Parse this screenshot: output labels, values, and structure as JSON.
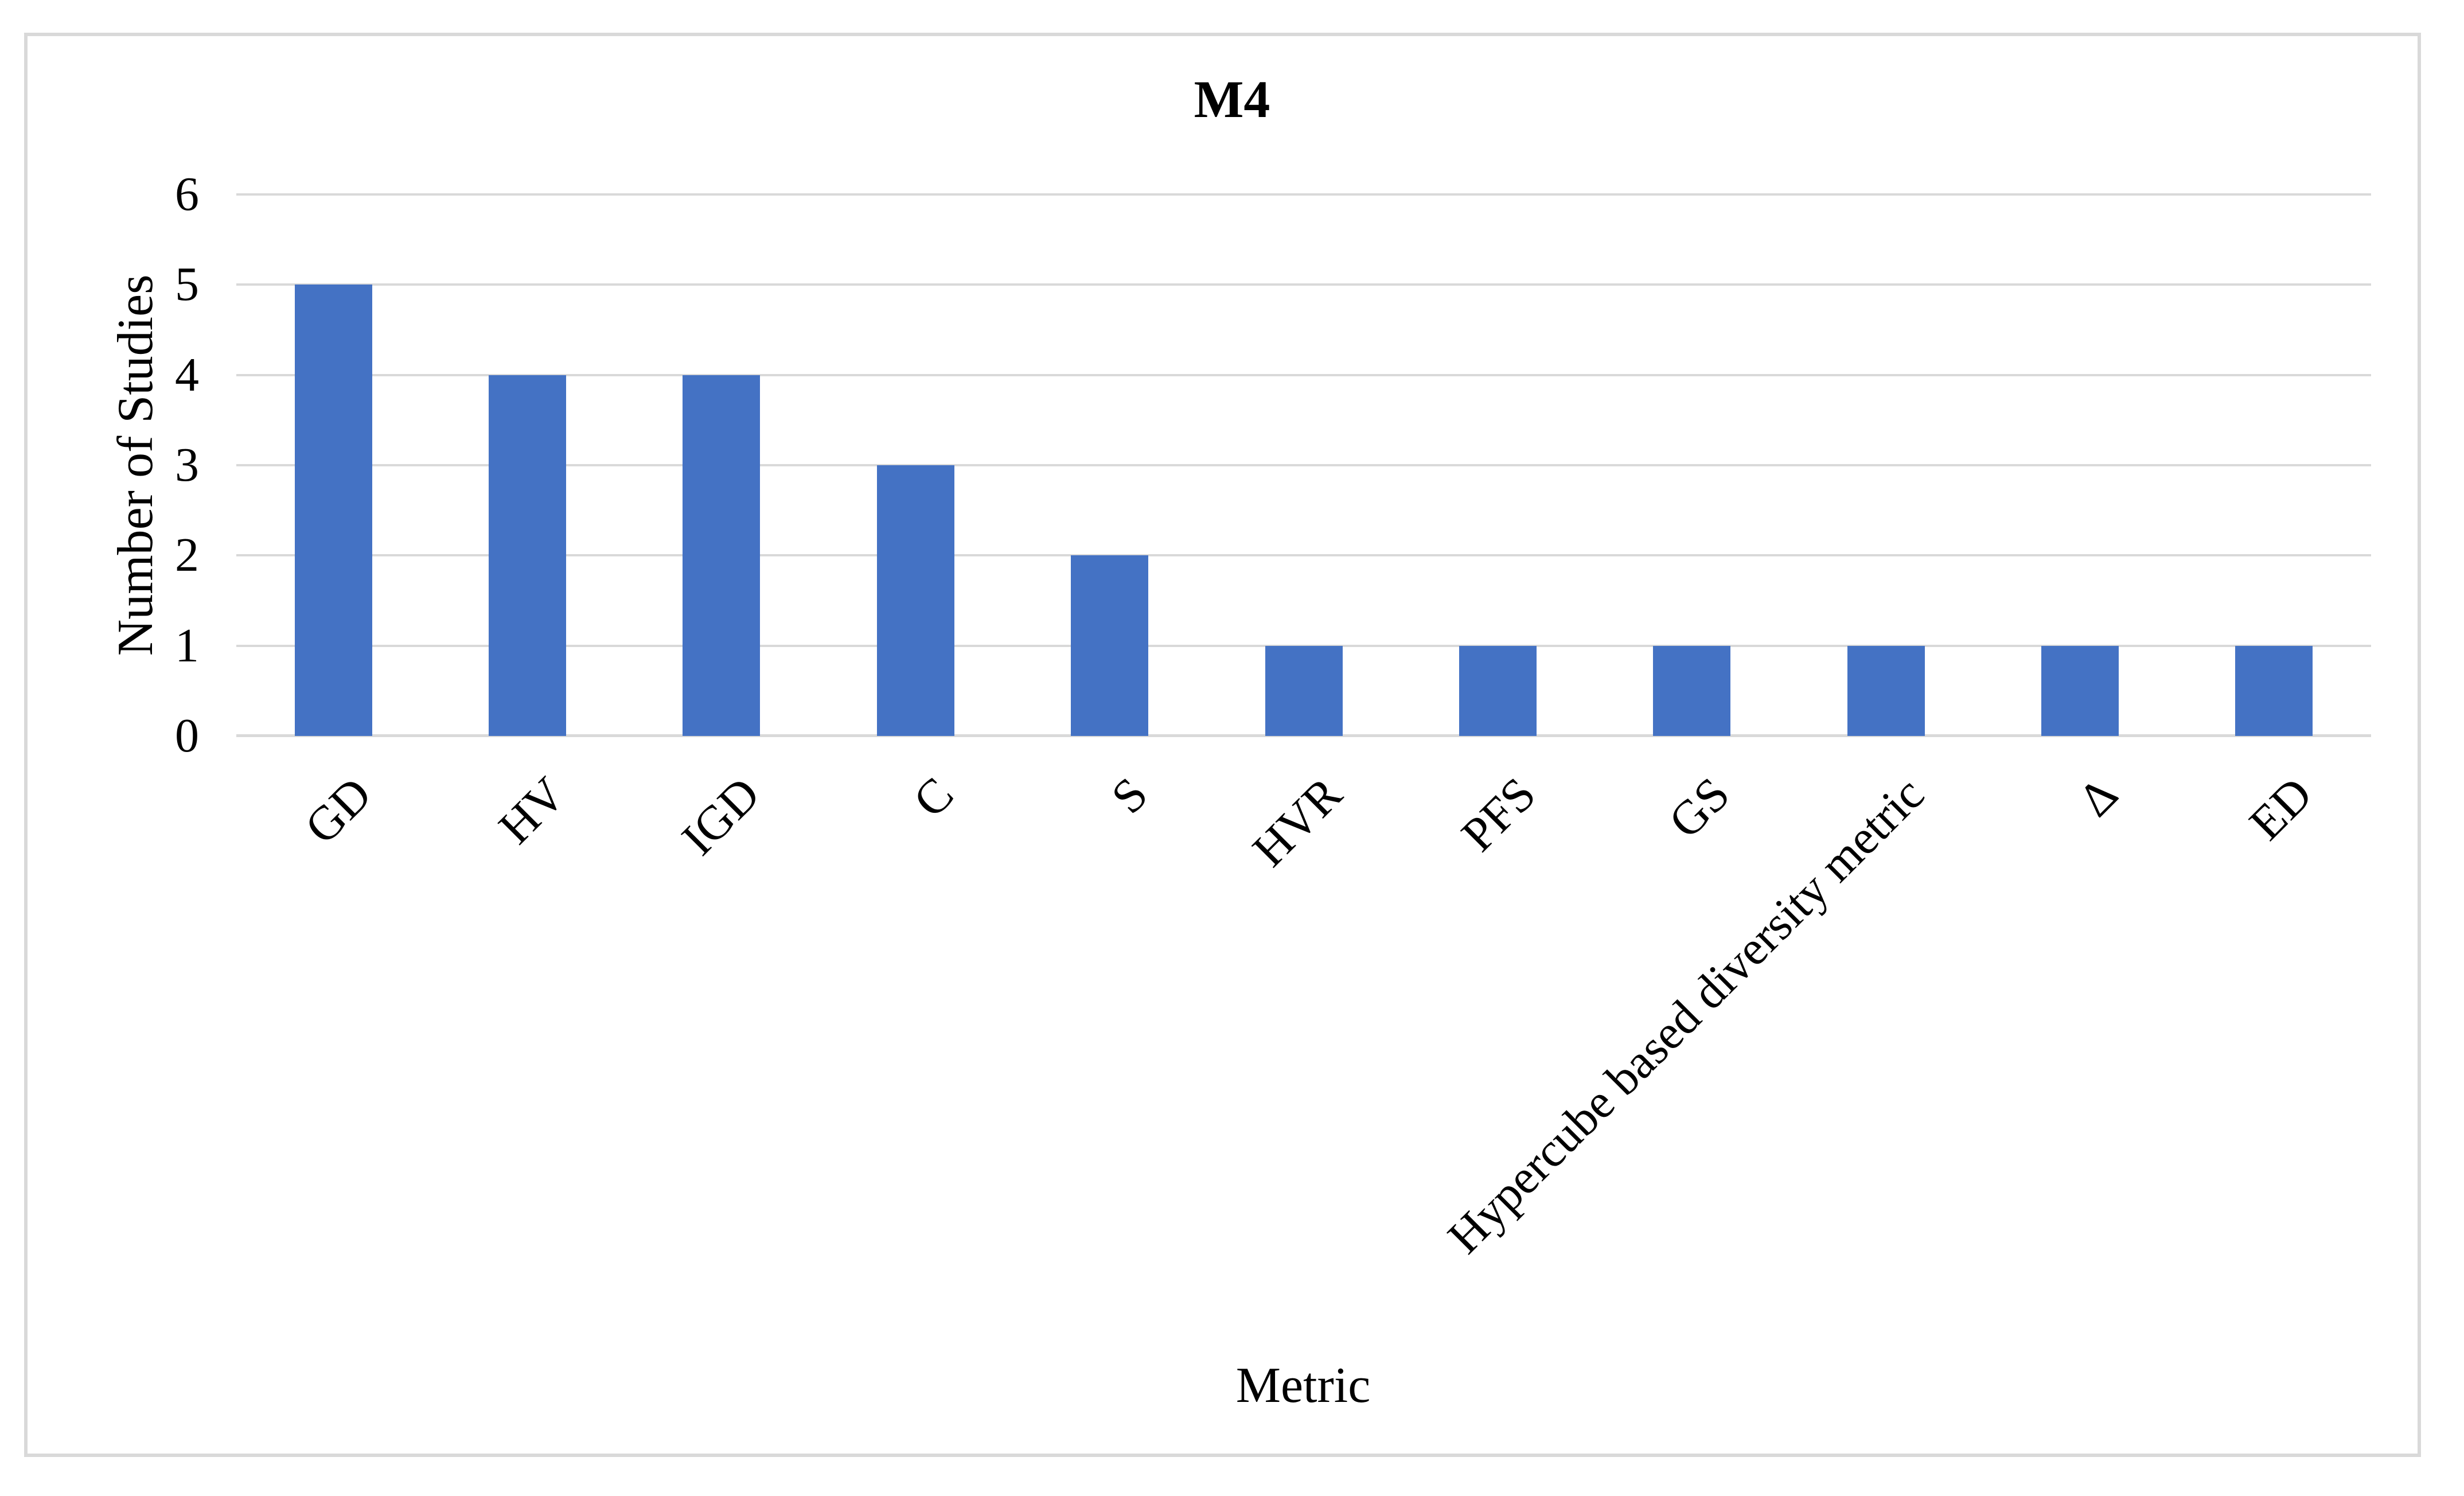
{
  "chart_data": {
    "type": "bar",
    "title": "M4",
    "xlabel": "Metric",
    "ylabel": "Number of Studies",
    "categories": [
      "GD",
      "HV",
      "IGD",
      "C",
      "S",
      "HVR",
      "PFS",
      "GS",
      "Hypercube based diversity metric",
      "Δ",
      "ED"
    ],
    "values": [
      5,
      4,
      4,
      3,
      2,
      1,
      1,
      1,
      1,
      1,
      1
    ],
    "ylim": [
      0,
      6
    ],
    "yticks": [
      0,
      1,
      2,
      3,
      4,
      5,
      6
    ],
    "bar_color": "#4472C4",
    "gridline_color": "#D9D9D9",
    "grid": "horizontal-only",
    "legend": "none",
    "category_label_rotation_deg": 45
  }
}
